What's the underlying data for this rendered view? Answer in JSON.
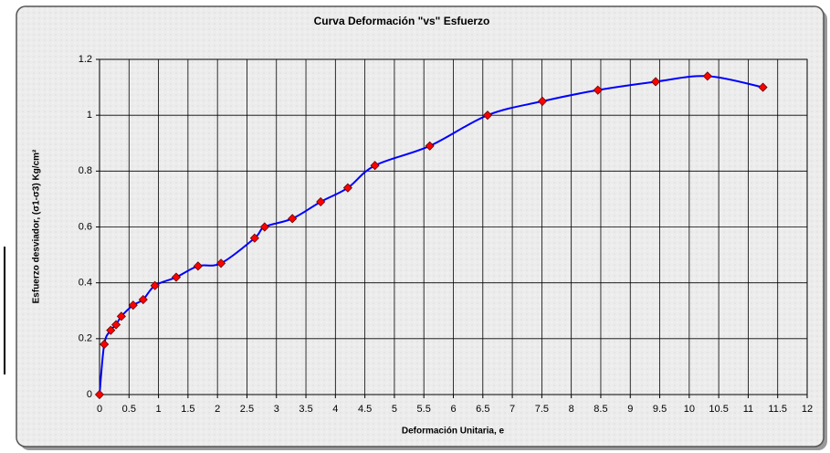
{
  "chart_data": {
    "type": "line",
    "title": "Curva Deformación \"vs\" Esfuerzo",
    "xlabel": "Deformación Unitaria, e",
    "ylabel": "Esfuerzo desviador, (σ1-σ3) Kg/cm²",
    "x": [
      0,
      0.08,
      0.19,
      0.28,
      0.37,
      0.57,
      0.74,
      0.94,
      1.3,
      1.67,
      2.06,
      2.63,
      2.8,
      3.27,
      3.75,
      4.21,
      4.67,
      5.6,
      6.58,
      7.51,
      8.45,
      9.43,
      10.31,
      11.25
    ],
    "values": [
      0,
      0.18,
      0.23,
      0.25,
      0.28,
      0.32,
      0.34,
      0.39,
      0.42,
      0.46,
      0.47,
      0.56,
      0.6,
      0.63,
      0.69,
      0.74,
      0.82,
      0.89,
      1.0,
      1.05,
      1.09,
      1.12,
      1.14,
      1.1
    ],
    "color": "#0000ff",
    "marker_color": "#ff0000",
    "xlim": [
      0,
      12
    ],
    "xticks": [
      0,
      0.5,
      1,
      1.5,
      2,
      2.5,
      3,
      3.5,
      4,
      4.5,
      5,
      5.5,
      6,
      6.5,
      7,
      7.5,
      8,
      8.5,
      9,
      9.5,
      10,
      10.5,
      11,
      11.5,
      12
    ],
    "ylim": [
      0,
      1.2
    ],
    "yticks": [
      0,
      0.2,
      0.4,
      0.6,
      0.8,
      1,
      1.2
    ],
    "grid": true
  }
}
